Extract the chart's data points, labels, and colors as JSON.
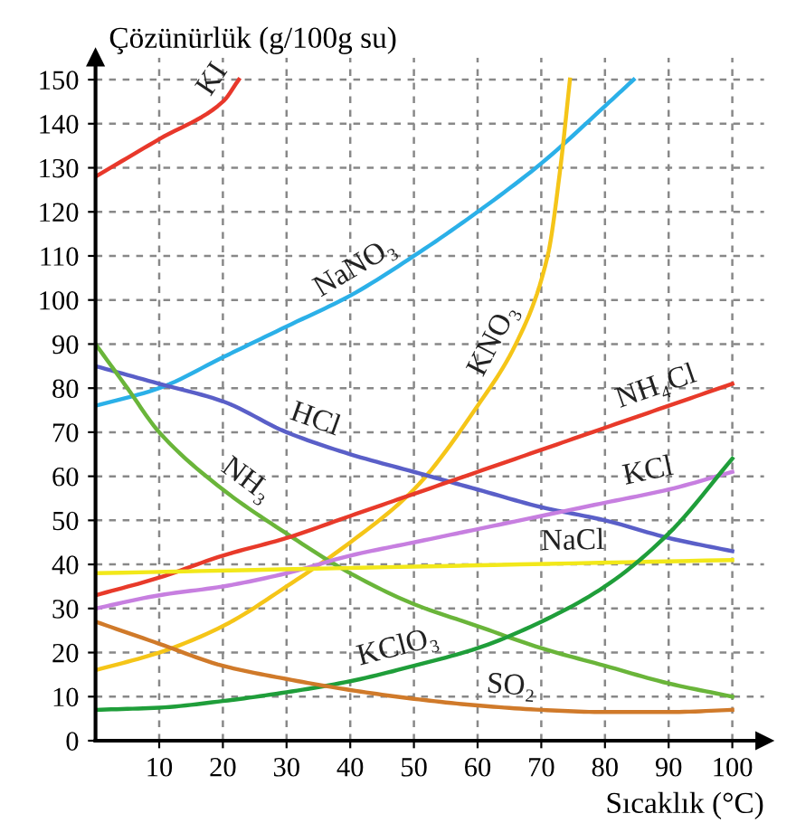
{
  "chart_data": {
    "type": "line",
    "xlabel": "Sıcaklık (°C)",
    "ylabel": "Çözünürlük (g/100g su)",
    "xlim": [
      0,
      105
    ],
    "ylim": [
      0,
      155
    ],
    "xticks": [
      10,
      20,
      30,
      40,
      50,
      60,
      70,
      80,
      90,
      100
    ],
    "yticks": [
      0,
      10,
      20,
      30,
      40,
      50,
      60,
      70,
      80,
      90,
      100,
      110,
      120,
      130,
      140,
      150
    ],
    "grid": true,
    "legend": false,
    "marker": "none",
    "line_style": "solid",
    "series": [
      {
        "name": "KI",
        "color": "#e8382b",
        "x": [
          0,
          10,
          20,
          22.5
        ],
        "values": [
          128,
          136.5,
          145,
          150
        ]
      },
      {
        "name": "NaNO₃",
        "color": "#2bb0e8",
        "x": [
          0,
          10,
          20,
          30,
          40,
          50,
          60,
          70,
          80,
          84.5
        ],
        "values": [
          76,
          80,
          87,
          94,
          101,
          110,
          120,
          131,
          144,
          150
        ]
      },
      {
        "name": "KNO₃",
        "color": "#f5c518",
        "x": [
          0,
          10,
          20,
          30,
          40,
          50,
          60,
          66,
          71,
          73,
          74.5
        ],
        "values": [
          16,
          20,
          26,
          35,
          45,
          57,
          76,
          90,
          110,
          130,
          150
        ]
      },
      {
        "name": "HCl",
        "color": "#5a5fc8",
        "x": [
          0,
          10,
          20,
          30,
          40,
          50,
          60,
          70,
          80,
          90,
          100
        ],
        "values": [
          85,
          81,
          77,
          70,
          65,
          61,
          57,
          53,
          50,
          46,
          43
        ]
      },
      {
        "name": "NH₃",
        "color": "#6ab53a",
        "x": [
          0,
          5,
          10,
          20,
          30,
          40,
          50,
          60,
          70,
          80,
          90,
          100
        ],
        "values": [
          90,
          80,
          70,
          57,
          47,
          38,
          31,
          26,
          21,
          17,
          13,
          10
        ]
      },
      {
        "name": "NH₄Cl",
        "color": "#e83a2a",
        "x": [
          0,
          10,
          20,
          30,
          40,
          50,
          60,
          70,
          80,
          90,
          100
        ],
        "values": [
          33,
          37,
          42,
          46,
          51,
          56,
          61,
          66,
          71,
          76,
          81
        ]
      },
      {
        "name": "KCl",
        "color": "#c77fe0",
        "x": [
          0,
          10,
          20,
          30,
          40,
          50,
          60,
          70,
          80,
          90,
          100
        ],
        "values": [
          30,
          33,
          35,
          38,
          42,
          45,
          48,
          51,
          54,
          57,
          61
        ]
      },
      {
        "name": "NaCl",
        "color": "#f2e81a",
        "x": [
          0,
          50,
          100
        ],
        "values": [
          38,
          39.5,
          41
        ]
      },
      {
        "name": "KClO₃",
        "color": "#1f9e3a",
        "x": [
          0,
          10,
          20,
          30,
          40,
          50,
          60,
          70,
          80,
          90,
          100
        ],
        "values": [
          7,
          7.5,
          9,
          11,
          13.5,
          17,
          21,
          27,
          35,
          47,
          64
        ]
      },
      {
        "name": "SO₂",
        "color": "#d07a2a",
        "x": [
          0,
          10,
          20,
          30,
          40,
          50,
          60,
          70,
          80,
          90,
          100
        ],
        "values": [
          27,
          22,
          17,
          14,
          11.5,
          9.5,
          8,
          7,
          6.5,
          6.5,
          7
        ]
      }
    ]
  }
}
